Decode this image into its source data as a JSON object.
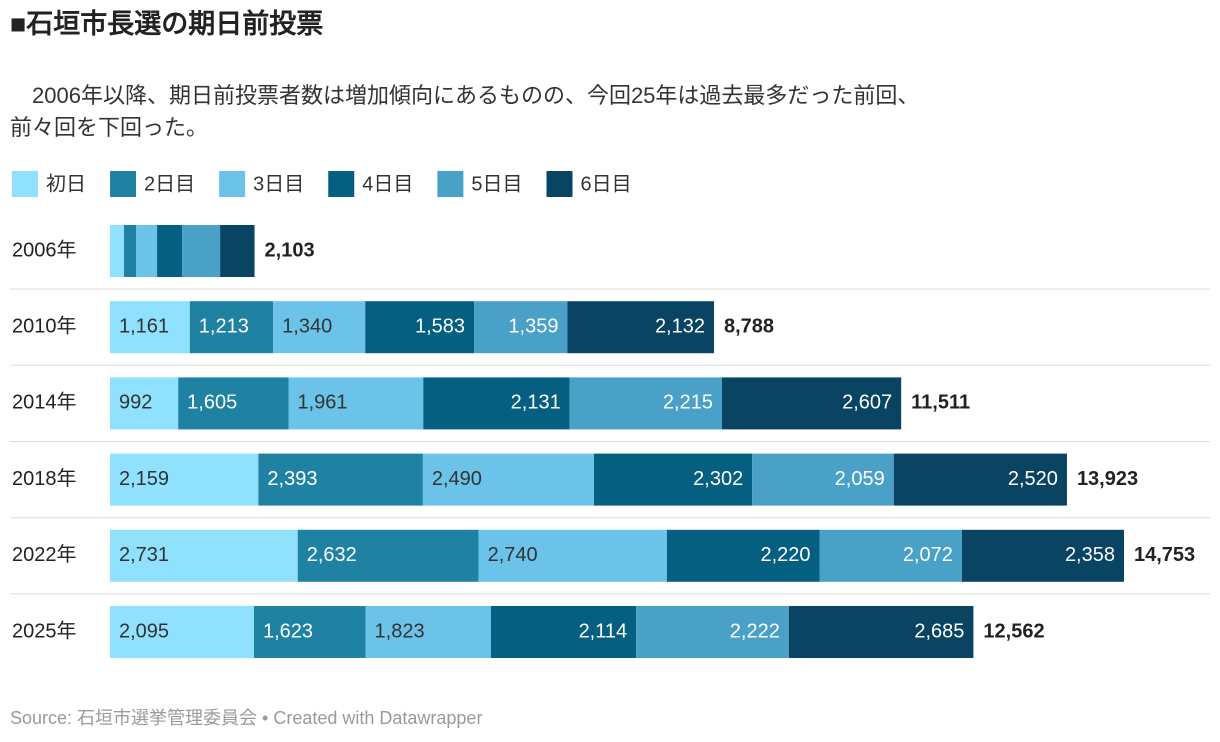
{
  "chart_data": {
    "type": "stacked-bar-horizontal",
    "title": "■石垣市長選の期日前投票",
    "subtitle": [
      "　2006年以降、期日前投票者数は増加傾向にあるものの、今回25年は過去最多だった前回、",
      "前々回を下回った。"
    ],
    "source": "Source: 石垣市選挙管理委員会 • Created with Datawrapper",
    "categories": [
      "2006年",
      "2010年",
      "2014年",
      "2018年",
      "2022年",
      "2025年"
    ],
    "series": [
      {
        "name": "初日",
        "color": "#8fe1fd",
        "values": [
          204,
          1161,
          992,
          2159,
          2731,
          2095
        ],
        "value_labels": [
          null,
          "1,161",
          "992",
          "2,159",
          "2,731",
          "2,095"
        ]
      },
      {
        "name": "2日目",
        "color": "#1f82a3",
        "values": [
          175,
          1213,
          1605,
          2393,
          2632,
          1623
        ],
        "value_labels": [
          null,
          "1,213",
          "1,605",
          "2,393",
          "2,632",
          "1,623"
        ]
      },
      {
        "name": "3日目",
        "color": "#6cc3e9",
        "values": [
          306,
          1340,
          1961,
          2490,
          2740,
          1823
        ],
        "value_labels": [
          null,
          "1,340",
          "1,961",
          "2,490",
          "2,740",
          "1,823"
        ]
      },
      {
        "name": "4日目",
        "color": "#055f80",
        "values": [
          364,
          1583,
          2131,
          2302,
          2220,
          2114
        ],
        "value_labels": [
          null,
          "1,583",
          "2,131",
          "2,302",
          "2,220",
          "2,114"
        ]
      },
      {
        "name": "5日目",
        "color": "#49a1c8",
        "values": [
          553,
          1359,
          2215,
          2059,
          2072,
          2222
        ],
        "value_labels": [
          null,
          "1,359",
          "2,215",
          "2,059",
          "2,072",
          "2,222"
        ]
      },
      {
        "name": "6日目",
        "color": "#0a4463",
        "values": [
          501,
          2132,
          2607,
          2520,
          2358,
          2685
        ],
        "value_labels": [
          null,
          "2,132",
          "2,607",
          "2,520",
          "2,358",
          "2,685"
        ]
      }
    ],
    "totals": [
      {
        "value": 2103,
        "label": "2,103"
      },
      {
        "value": 8788,
        "label": "8,788"
      },
      {
        "value": 11511,
        "label": "11,511"
      },
      {
        "value": 13923,
        "label": "13,923"
      },
      {
        "value": 14753,
        "label": "14,753"
      },
      {
        "value": 12562,
        "label": "12,562"
      }
    ]
  }
}
